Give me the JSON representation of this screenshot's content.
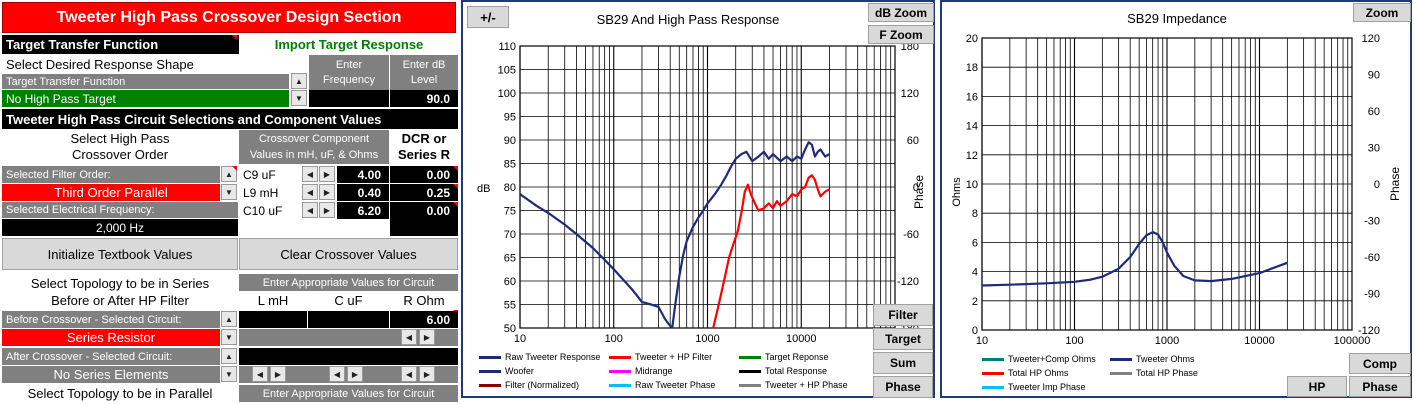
{
  "design": {
    "title": "Tweeter High Pass Crossover Design Section",
    "target_transfer_function": "Target Transfer Function",
    "import_target_response": "Import Target Response",
    "select_response_shape": "Select Desired Response Shape",
    "enter_frequency_1": "Enter",
    "enter_frequency_2": "Frequency",
    "enter_level_1": "Enter dB",
    "enter_level_2": "Level",
    "ttf_label": "Target Transfer Function",
    "ttf_value": "No High Pass Target",
    "level_value": "90.0",
    "circuit_selections": "Tweeter High Pass Circuit Selections and Component Values",
    "select_order_1": "Select High Pass",
    "select_order_2": "Crossover Order",
    "component_values_1": "Crossover Component",
    "component_values_2": "Values in mH, uF, & Ohms",
    "dcr_1": "DCR or",
    "dcr_2": "Series R",
    "selected_filter_order": "Selected Filter Order:",
    "filter_order_value": "Third Order Parallel",
    "selected_electrical_frequency": "Selected Electrical Frequency:",
    "frequency_value": "2,000 Hz",
    "components": [
      {
        "name": "C9  uF",
        "value": "4.00",
        "dcr": "0.00"
      },
      {
        "name": "L9 mH",
        "value": "0.40",
        "dcr": "0.25"
      },
      {
        "name": "C10  uF",
        "value": "6.20",
        "dcr": "0.00"
      }
    ],
    "initialize_button": "Initialize Textbook Values",
    "clear_button": "Clear Crossover Values",
    "series_topology_1": "Select Topology to be in Series",
    "series_topology_2": "Before or After HP Filter",
    "enter_values_circuit": "Enter Appropriate Values for Circuit",
    "col_l": "L mH",
    "col_c": "C uF",
    "col_r": "R Ohm",
    "before_crossover_label": "Before Crossover - Selected Circuit:",
    "before_r_value": "6.00",
    "before_value": "Series Resistor",
    "after_crossover_label": "After Crossover - Selected Circuit:",
    "after_value": "No Series Elements",
    "parallel_topology": "Select Topology to be in Parallel",
    "enter_values_circuit_2": "Enter Appropriate Values for Circuit"
  },
  "response_chart": {
    "plus_minus": "+/-",
    "db_zoom": "dB Zoom",
    "f_zoom": "F Zoom",
    "side_buttons": [
      "Filter",
      "Target",
      "Sum",
      "Phase"
    ],
    "legend": [
      {
        "label": "Raw Tweeter Response",
        "color": "#1f2a7a"
      },
      {
        "label": "Tweeter + HP Filter",
        "color": "#ff0000"
      },
      {
        "label": "Target Reponse",
        "color": "#008000"
      },
      {
        "label": "Woofer",
        "color": "#1f2a7a"
      },
      {
        "label": "Midrange",
        "color": "#ff00ff"
      },
      {
        "label": "Total Response",
        "color": "#000000"
      },
      {
        "label": "Filter (Normalized)",
        "color": "#8b0000"
      },
      {
        "label": "Raw Tweeter Phase",
        "color": "#00bfff"
      },
      {
        "label": "Tweeter + HP Phase",
        "color": "#808080"
      }
    ]
  },
  "impedance_chart": {
    "zoom": "Zoom",
    "comp_button": "Comp",
    "hp_button": "HP",
    "phase_button": "Phase",
    "legend": [
      {
        "label": "Tweeter+Comp Ohms",
        "color": "#008080"
      },
      {
        "label": "Tweeter Ohms",
        "color": "#1f2a7a"
      },
      {
        "label": "Total HP Ohms",
        "color": "#ff0000"
      },
      {
        "label": "Total HP Phase",
        "color": "#808080"
      },
      {
        "label": "Tweeter Imp Phase",
        "color": "#00bfff"
      }
    ]
  },
  "chart_data": [
    {
      "type": "line",
      "title": "SB29  And High Pass Response",
      "xlabel": "",
      "ylabel": "dB",
      "y2label": "Phase",
      "xscale": "log",
      "xlim": [
        10,
        100000
      ],
      "ylim": [
        50,
        110
      ],
      "y2lim": [
        -180,
        180
      ],
      "x_ticks": [
        "10",
        "100",
        "1000",
        "10000",
        "100000"
      ],
      "y_ticks": [
        "50",
        "55",
        "60",
        "65",
        "70",
        "75",
        "80",
        "85",
        "90",
        "95",
        "100",
        "105",
        "110"
      ],
      "y2_ticks": [
        "-180",
        "-120",
        "-60",
        "0",
        "60",
        "120",
        "180"
      ],
      "grid": true,
      "series": [
        {
          "name": "Woofer",
          "color": "#1f2a7a",
          "x": [
            10,
            15,
            20,
            30,
            40,
            60,
            80,
            100,
            130,
            160,
            200,
            250,
            300,
            350,
            380,
            420
          ],
          "y": [
            78.5,
            76,
            74.5,
            72,
            70,
            67,
            64.5,
            62.5,
            60,
            58,
            55.5,
            55,
            54.5,
            52,
            51,
            50
          ]
        },
        {
          "name": "Raw Tweeter Response",
          "color": "#1f2a7a",
          "x": [
            420,
            460,
            500,
            550,
            600,
            700,
            800,
            900,
            1000,
            1200,
            1400,
            1600,
            1800,
            2000,
            2300,
            2600,
            3000,
            3500,
            4000,
            4500,
            5000,
            6000,
            7000,
            8000,
            9000,
            10000,
            11000,
            12000,
            13000,
            14000,
            15000,
            16000,
            18000,
            20000
          ],
          "y": [
            50,
            56,
            61,
            65.5,
            68.5,
            71.5,
            73.5,
            75,
            76.5,
            78.5,
            80.5,
            82.5,
            84.5,
            86,
            87,
            87.5,
            85.5,
            86.5,
            87.5,
            86,
            87,
            85.5,
            86.5,
            85.5,
            86.5,
            86,
            88,
            89.5,
            89,
            86.5,
            87.5,
            88,
            86.5,
            87
          ]
        },
        {
          "name": "Tweeter + HP Filter",
          "color": "#ff0000",
          "x": [
            1150,
            1300,
            1500,
            1700,
            1900,
            2100,
            2300,
            2500,
            2700,
            2900,
            3200,
            3500,
            4000,
            4500,
            5000,
            5500,
            6000,
            7000,
            8000,
            9000,
            10000,
            11000,
            12000,
            13000,
            14000,
            15000,
            16000,
            18000,
            20000
          ],
          "y": [
            50,
            54.5,
            60,
            65,
            68,
            70.5,
            74.5,
            79,
            80.5,
            78.5,
            76.5,
            75,
            75.5,
            76.5,
            75.5,
            77,
            76,
            77,
            78.5,
            78,
            79.5,
            80,
            82,
            82.5,
            81.5,
            79.5,
            78,
            79,
            79.5
          ]
        }
      ]
    },
    {
      "type": "line",
      "title": "SB29  Impedance",
      "xlabel": "",
      "ylabel": "Ohms",
      "y2label": "Phase",
      "xscale": "log",
      "xlim": [
        10,
        100000
      ],
      "ylim": [
        0,
        20
      ],
      "y2lim": [
        -120,
        120
      ],
      "x_ticks": [
        "10",
        "100",
        "1000",
        "10000",
        "100000"
      ],
      "y_ticks": [
        "0",
        "2",
        "4",
        "6",
        "8",
        "10",
        "12",
        "14",
        "16",
        "18",
        "20"
      ],
      "y2_ticks": [
        "-120",
        "-90",
        "-60",
        "-30",
        "0",
        "30",
        "60",
        "90",
        "120"
      ],
      "grid": true,
      "series": [
        {
          "name": "Tweeter Ohms",
          "color": "#1f2a7a",
          "x": [
            10,
            20,
            50,
            100,
            150,
            200,
            300,
            400,
            500,
            600,
            700,
            800,
            900,
            1000,
            1200,
            1500,
            2000,
            3000,
            5000,
            10000,
            20000
          ],
          "y": [
            3.05,
            3.1,
            3.2,
            3.3,
            3.45,
            3.65,
            4.2,
            5.0,
            5.9,
            6.5,
            6.7,
            6.55,
            6.0,
            5.3,
            4.4,
            3.7,
            3.4,
            3.35,
            3.5,
            3.9,
            4.6
          ]
        }
      ]
    }
  ]
}
